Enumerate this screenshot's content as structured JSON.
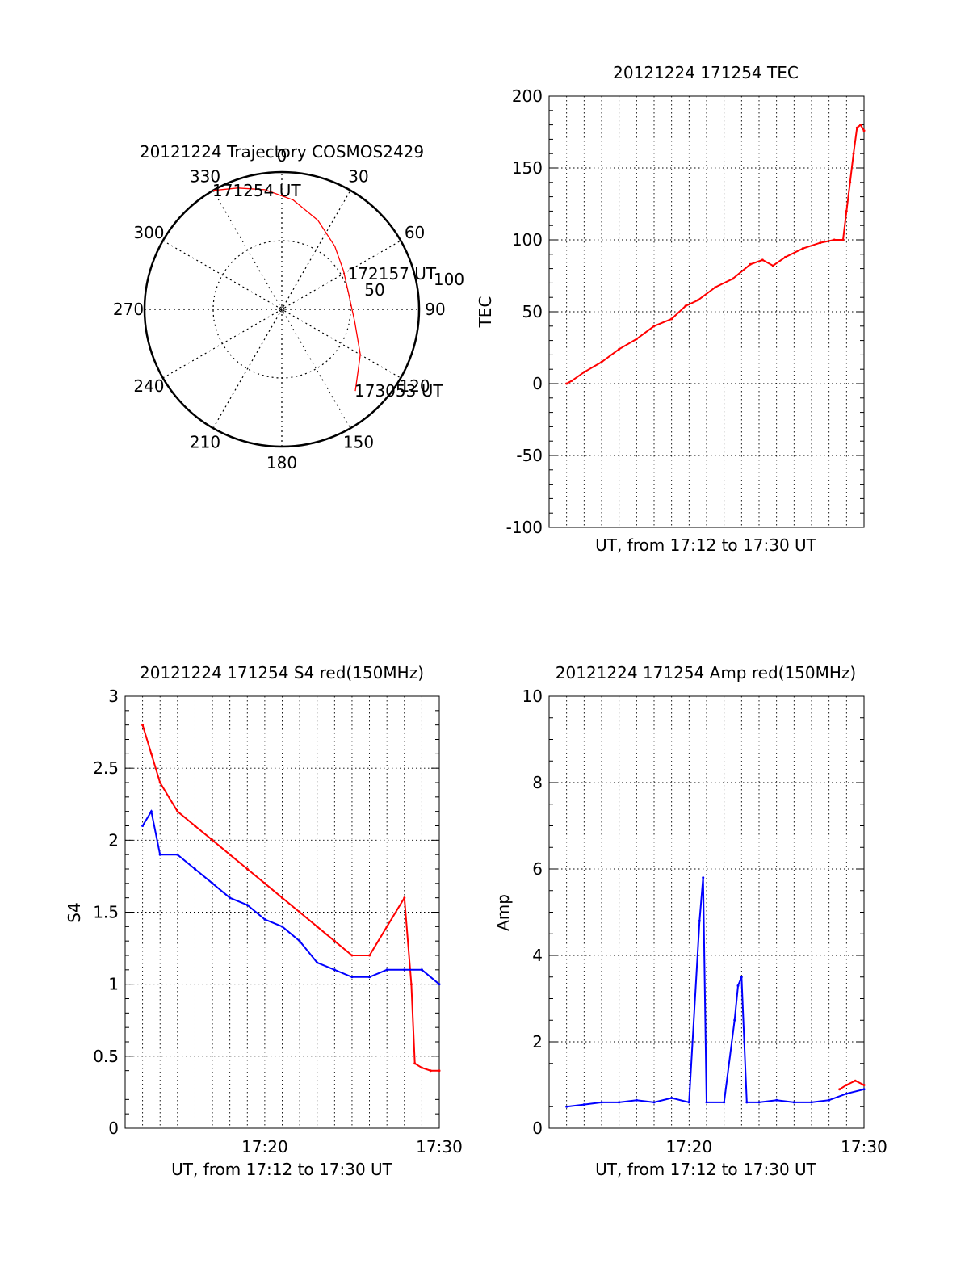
{
  "chart_data": [
    {
      "type": "polar-trajectory",
      "title": "20121224 Trajectory COSMOS2429",
      "angle_labels": [
        "0",
        "30",
        "60",
        "90",
        "120",
        "150",
        "180",
        "210",
        "240",
        "270",
        "300",
        "330"
      ],
      "radial_labels": [
        "100",
        "50"
      ],
      "grid": true,
      "trajectory_color": "#ff0000",
      "trajectory": [
        {
          "az": 330,
          "r": 100
        },
        {
          "az": 340,
          "r": 94
        },
        {
          "az": 352,
          "r": 88
        },
        {
          "az": 6,
          "r": 80
        },
        {
          "az": 22,
          "r": 70
        },
        {
          "az": 40,
          "r": 60
        },
        {
          "az": 58,
          "r": 53
        },
        {
          "az": 78,
          "r": 50
        },
        {
          "az": 100,
          "r": 54
        },
        {
          "az": 120,
          "r": 66
        },
        {
          "az": 138,
          "r": 80
        }
      ],
      "point_labels": [
        {
          "text": "171254 UT",
          "az": 330,
          "r": 100
        },
        {
          "text": "172157 UT",
          "az": 62,
          "r": 55
        },
        {
          "text": "173053 UT",
          "az": 138,
          "r": 80
        }
      ]
    },
    {
      "type": "line",
      "title": "20121224 171254 TEC",
      "xlabel": "UT, from 17:12 to 17:30 UT",
      "ylabel": "TEC",
      "xlim": [
        0,
        18
      ],
      "ylim": [
        -100,
        200
      ],
      "yticks": [
        "-100",
        "-50",
        "0",
        "50",
        "100",
        "150",
        "200"
      ],
      "grid": true,
      "series": [
        {
          "color": "#ff0000",
          "x": [
            1.0,
            1.3,
            2.0,
            3.0,
            4.0,
            5.0,
            6.0,
            7.0,
            7.8,
            8.5,
            9.5,
            10.5,
            11.5,
            12.2,
            12.8,
            13.5,
            14.5,
            15.5,
            16.3,
            16.8,
            17.0,
            17.2,
            17.4,
            17.6,
            17.8,
            18.0
          ],
          "y": [
            0,
            2,
            8,
            15,
            24,
            31,
            40,
            45,
            54,
            58,
            67,
            73,
            83,
            86,
            82,
            88,
            94,
            98,
            100,
            100,
            120,
            140,
            160,
            178,
            180,
            176
          ]
        }
      ]
    },
    {
      "type": "line",
      "title": "20121224 171254 S4 red(150MHz)",
      "xlabel": "UT, from 17:12 to 17:30 UT",
      "ylabel": "S4",
      "xlim": [
        0,
        18
      ],
      "ylim": [
        0,
        3
      ],
      "yticks": [
        "0",
        "0.5",
        "1",
        "1.5",
        "2",
        "2.5",
        "3"
      ],
      "xticks": [
        {
          "value": 8,
          "label": "17:20"
        },
        {
          "value": 18,
          "label": "17:30"
        }
      ],
      "grid": true,
      "series": [
        {
          "color": "#ff0000",
          "x": [
            1.0,
            1.5,
            2.0,
            3.0,
            4.0,
            5.0,
            6.0,
            7.0,
            8.0,
            9.0,
            10.0,
            11.0,
            12.0,
            13.0,
            14.0,
            15.0,
            16.0,
            16.4,
            16.6,
            17.0,
            17.5,
            18.0
          ],
          "y": [
            2.8,
            2.6,
            2.4,
            2.2,
            2.1,
            2.0,
            1.9,
            1.8,
            1.7,
            1.6,
            1.5,
            1.4,
            1.3,
            1.2,
            1.2,
            1.4,
            1.6,
            1.0,
            0.45,
            0.42,
            0.4,
            0.4
          ]
        },
        {
          "color": "#0000ff",
          "x": [
            1.0,
            1.5,
            2.0,
            3.0,
            4.0,
            5.0,
            6.0,
            7.0,
            8.0,
            9.0,
            10.0,
            11.0,
            12.0,
            13.0,
            14.0,
            15.0,
            16.0,
            17.0,
            18.0
          ],
          "y": [
            2.1,
            2.2,
            1.9,
            1.9,
            1.8,
            1.7,
            1.6,
            1.55,
            1.45,
            1.4,
            1.3,
            1.15,
            1.1,
            1.05,
            1.05,
            1.1,
            1.1,
            1.1,
            1.0
          ]
        }
      ]
    },
    {
      "type": "line",
      "title": "20121224 171254 Amp red(150MHz)",
      "xlabel": "UT, from 17:12 to 17:30 UT",
      "ylabel": "Amp",
      "xlim": [
        0,
        18
      ],
      "ylim": [
        0,
        10
      ],
      "yticks": [
        "0",
        "2",
        "4",
        "6",
        "8",
        "10"
      ],
      "xticks": [
        {
          "value": 8,
          "label": "17:20"
        },
        {
          "value": 18,
          "label": "17:30"
        }
      ],
      "grid": true,
      "series": [
        {
          "color": "#0000ff",
          "x": [
            1.0,
            2.0,
            3.0,
            4.0,
            5.0,
            6.0,
            7.0,
            8.0,
            8.6,
            8.8,
            9.0,
            10.0,
            10.6,
            10.8,
            11.0,
            11.3,
            12.0,
            13.0,
            14.0,
            15.0,
            16.0,
            17.0,
            18.0
          ],
          "y": [
            0.5,
            0.55,
            0.6,
            0.6,
            0.65,
            0.6,
            0.7,
            0.6,
            4.8,
            5.8,
            0.6,
            0.6,
            2.5,
            3.3,
            3.5,
            0.6,
            0.6,
            0.65,
            0.6,
            0.6,
            0.65,
            0.8,
            0.9
          ]
        },
        {
          "color": "#ff0000",
          "x": [
            16.6,
            17.0,
            17.5,
            18.0
          ],
          "y": [
            0.9,
            1.0,
            1.1,
            1.0
          ]
        }
      ]
    }
  ]
}
